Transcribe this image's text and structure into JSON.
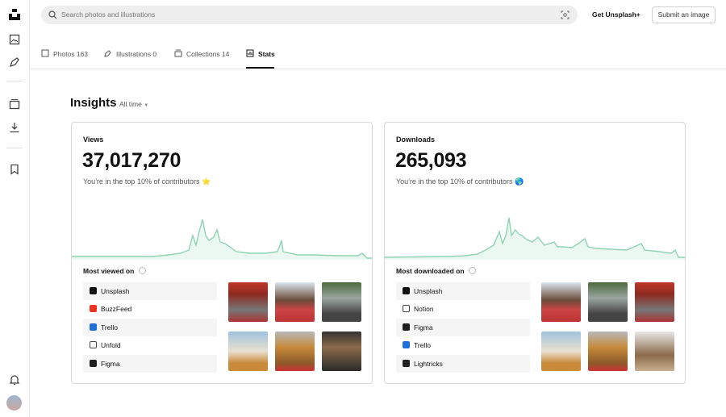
{
  "search": {
    "placeholder": "Search photos and illustrations"
  },
  "header": {
    "get_plus": "Get Unsplash+",
    "submit": "Submit an image"
  },
  "tabs": [
    {
      "label": "Photos",
      "count": 163
    },
    {
      "label": "Illustrations",
      "count": 0
    },
    {
      "label": "Collections",
      "count": 14
    },
    {
      "label": "Stats"
    }
  ],
  "insights": {
    "title": "Insights",
    "range": "All time",
    "cards": [
      {
        "label": "Views",
        "total": "37,017,270",
        "note": "You're in the top 10% of contributors ⭐",
        "platform_title": "Most viewed on",
        "platforms": [
          "Unsplash",
          "BuzzFeed",
          "Trello",
          "Unfold",
          "Figma"
        ]
      },
      {
        "label": "Downloads",
        "total": "265,093",
        "note": "You're in the top 10% of contributors 🌎",
        "platform_title": "Most downloaded on",
        "platforms": [
          "Unsplash",
          "Notion",
          "Figma",
          "Trello",
          "Lightricks"
        ]
      }
    ]
  }
}
